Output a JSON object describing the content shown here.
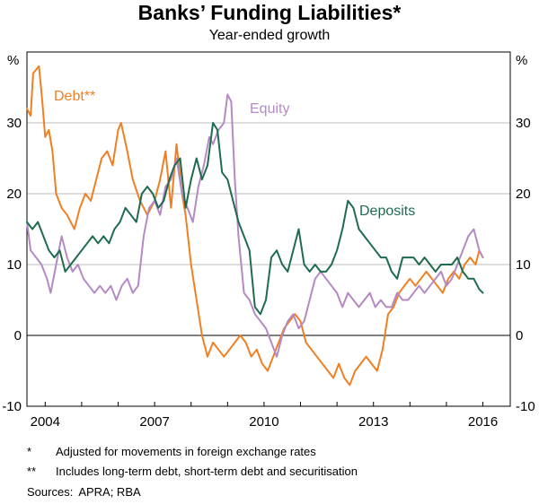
{
  "title": "Banks’ Funding Liabilities*",
  "subtitle": "Year-ended growth",
  "notes": [
    {
      "mark": "*",
      "text": "Adjusted for movements in foreign exchange rates"
    },
    {
      "mark": "**",
      "text": "Includes long-term debt, short-term debt and securitisation"
    }
  ],
  "sources": {
    "label": "Sources:",
    "text": "APRA; RBA"
  },
  "chart_data": {
    "type": "line",
    "title": "Banks’ Funding Liabilities*",
    "subtitle": "Year-ended growth",
    "xlim": [
      2003.5,
      2016.75
    ],
    "ylim": [
      -10,
      40
    ],
    "y_ticks": [
      -10,
      0,
      10,
      20,
      30
    ],
    "x_ticks": [
      2004,
      2007,
      2010,
      2013,
      2016
    ],
    "y_unit_left": "%",
    "y_unit_right": "%",
    "grid": true,
    "series": [
      {
        "name": "Debt**",
        "color": "#f07f22",
        "x": [
          2003.5,
          2003.6,
          2003.67,
          2003.83,
          2003.92,
          2004.0,
          2004.1,
          2004.2,
          2004.3,
          2004.45,
          2004.6,
          2004.8,
          2004.95,
          2005.1,
          2005.25,
          2005.4,
          2005.55,
          2005.7,
          2005.85,
          2006.0,
          2006.08,
          2006.25,
          2006.4,
          2006.6,
          2006.8,
          2007.0,
          2007.15,
          2007.3,
          2007.45,
          2007.6,
          2007.75,
          2007.85,
          2008.0,
          2008.15,
          2008.3,
          2008.45,
          2008.6,
          2008.75,
          2008.9,
          2009.05,
          2009.2,
          2009.35,
          2009.5,
          2009.65,
          2009.8,
          2009.95,
          2010.1,
          2010.25,
          2010.4,
          2010.55,
          2010.7,
          2010.85,
          2011.0,
          2011.15,
          2011.3,
          2011.45,
          2011.6,
          2011.75,
          2011.9,
          2012.05,
          2012.2,
          2012.35,
          2012.5,
          2012.65,
          2012.8,
          2012.95,
          2013.1,
          2013.25,
          2013.4,
          2013.55,
          2013.7,
          2013.85,
          2014.0,
          2014.15,
          2014.3,
          2014.45,
          2014.6,
          2014.75,
          2014.9,
          2015.05,
          2015.2,
          2015.35,
          2015.5,
          2015.65,
          2015.8,
          2015.9,
          2016.0
        ],
        "values": [
          32,
          31,
          37,
          38,
          33,
          28,
          29,
          26,
          20,
          18,
          17,
          15,
          18,
          20,
          19,
          22,
          25,
          26,
          24,
          29,
          30,
          26,
          22,
          19,
          17,
          19,
          22,
          26,
          18,
          27,
          20,
          17,
          10,
          5,
          0,
          -3,
          -1,
          -2,
          -3,
          -2,
          -1,
          0,
          -1,
          -3,
          -2,
          -4,
          -5,
          -3,
          -1,
          1,
          2,
          3,
          2,
          -1,
          -2,
          -3,
          -4,
          -5,
          -6,
          -4,
          -6,
          -7,
          -5,
          -4,
          -3,
          -4,
          -5,
          -2,
          3,
          4,
          6,
          7,
          8,
          7,
          8,
          9,
          8,
          7,
          6,
          8,
          9,
          8,
          10,
          11,
          10,
          12,
          11
        ]
      },
      {
        "name": "Equity",
        "color": "#b48ac4",
        "x": [
          2003.5,
          2003.6,
          2003.75,
          2003.9,
          2004.05,
          2004.15,
          2004.3,
          2004.45,
          2004.6,
          2004.75,
          2004.9,
          2005.05,
          2005.2,
          2005.35,
          2005.5,
          2005.65,
          2005.8,
          2005.95,
          2006.1,
          2006.25,
          2006.4,
          2006.55,
          2006.7,
          2006.85,
          2007.0,
          2007.15,
          2007.3,
          2007.45,
          2007.6,
          2007.75,
          2007.9,
          2008.05,
          2008.2,
          2008.35,
          2008.5,
          2008.6,
          2008.75,
          2008.9,
          2009.0,
          2009.1,
          2009.2,
          2009.3,
          2009.45,
          2009.6,
          2009.75,
          2009.9,
          2010.05,
          2010.2,
          2010.35,
          2010.5,
          2010.65,
          2010.8,
          2010.95,
          2011.1,
          2011.25,
          2011.4,
          2011.55,
          2011.7,
          2011.85,
          2012.0,
          2012.15,
          2012.3,
          2012.45,
          2012.6,
          2012.75,
          2012.9,
          2013.05,
          2013.2,
          2013.35,
          2013.5,
          2013.65,
          2013.8,
          2013.95,
          2014.1,
          2014.25,
          2014.4,
          2014.55,
          2014.7,
          2014.85,
          2015.0,
          2015.15,
          2015.3,
          2015.45,
          2015.6,
          2015.75,
          2015.9,
          2016.0
        ],
        "values": [
          16,
          12,
          11,
          10,
          8,
          6,
          10,
          14,
          11,
          9,
          10,
          8,
          7,
          6,
          7,
          6,
          7,
          5,
          7,
          8,
          6,
          7,
          14,
          18,
          19,
          17,
          21,
          22,
          25,
          20,
          18,
          16,
          21,
          24,
          28,
          27,
          29,
          30,
          34,
          33,
          22,
          14,
          6,
          5,
          3,
          2,
          1,
          -1,
          -3,
          0,
          2,
          3,
          1,
          2,
          5,
          8,
          9,
          8,
          7,
          6,
          4,
          6,
          5,
          4,
          5,
          6,
          4,
          5,
          4,
          4,
          6,
          5,
          5,
          6,
          7,
          6,
          7,
          8,
          9,
          7,
          8,
          10,
          12,
          14,
          15,
          12,
          11
        ]
      },
      {
        "name": "Deposits",
        "color": "#1f6b4e",
        "x": [
          2003.5,
          2003.65,
          2003.8,
          2003.95,
          2004.1,
          2004.25,
          2004.4,
          2004.55,
          2004.7,
          2004.85,
          2005.0,
          2005.15,
          2005.3,
          2005.45,
          2005.6,
          2005.75,
          2005.9,
          2006.05,
          2006.2,
          2006.35,
          2006.5,
          2006.65,
          2006.8,
          2006.95,
          2007.1,
          2007.25,
          2007.4,
          2007.55,
          2007.7,
          2007.85,
          2008.0,
          2008.15,
          2008.3,
          2008.45,
          2008.6,
          2008.72,
          2008.85,
          2009.0,
          2009.15,
          2009.3,
          2009.45,
          2009.6,
          2009.75,
          2009.9,
          2010.05,
          2010.2,
          2010.35,
          2010.5,
          2010.65,
          2010.8,
          2010.95,
          2011.1,
          2011.25,
          2011.4,
          2011.55,
          2011.7,
          2011.85,
          2012.0,
          2012.15,
          2012.3,
          2012.45,
          2012.6,
          2012.75,
          2012.9,
          2013.05,
          2013.2,
          2013.35,
          2013.5,
          2013.65,
          2013.8,
          2013.95,
          2014.1,
          2014.25,
          2014.4,
          2014.55,
          2014.7,
          2014.85,
          2015.0,
          2015.15,
          2015.3,
          2015.45,
          2015.6,
          2015.75,
          2015.9,
          2016.0
        ],
        "values": [
          16,
          15,
          16,
          14,
          12,
          11,
          12,
          9,
          10,
          11,
          12,
          13,
          14,
          13,
          14,
          13,
          15,
          16,
          18,
          17,
          16,
          20,
          21,
          20,
          18,
          19,
          22,
          24,
          25,
          18,
          22,
          25,
          22,
          24,
          30,
          29,
          23,
          22,
          19,
          16,
          14,
          12,
          4,
          3,
          5,
          11,
          12,
          10,
          9,
          12,
          15,
          10,
          9,
          10,
          9,
          9,
          10,
          12,
          15,
          19,
          18,
          15,
          14,
          13,
          12,
          11,
          11,
          9,
          8,
          11,
          11,
          11,
          10,
          11,
          10,
          9,
          10,
          10,
          10,
          11,
          9,
          8,
          8,
          6.5,
          6
        ]
      }
    ],
    "labels": [
      {
        "series": "Debt**",
        "text": "Debt**",
        "color": "#f07f22"
      },
      {
        "series": "Equity",
        "text": "Equity",
        "color": "#b48ac4"
      },
      {
        "series": "Deposits",
        "text": "Deposits",
        "color": "#1f6b4e"
      }
    ]
  }
}
